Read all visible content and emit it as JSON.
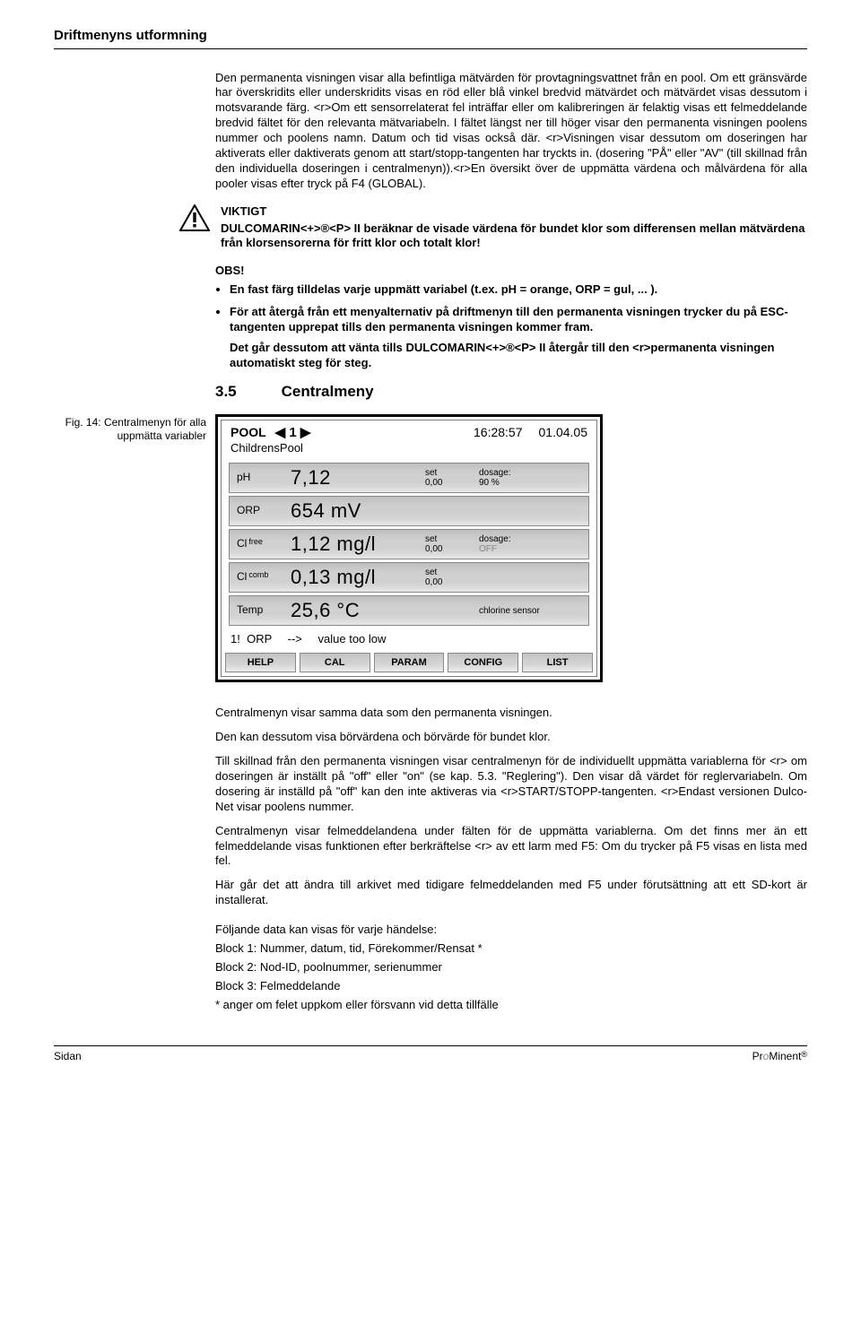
{
  "page": {
    "header": "Driftmenyns utformning",
    "intro_para": "Den permanenta visningen visar alla befintliga mätvärden för provtagningsvattnet från en pool. Om ett gränsvärde har överskridits eller underskridits visas en röd eller blå vinkel bredvid mätvärdet och mätvärdet visas dessutom i motsvarande färg. <r>Om ett sensorrelaterat fel inträffar eller om kalibreringen är felaktig visas ett felmeddelande bredvid fältet för den relevanta mätvariabeln. I fältet längst ner till höger visar den permanenta visningen poolens nummer och poolens namn. Datum och tid visas också där. <r>Visningen visar dessutom om doseringen har aktiverats eller daktiverats genom att start/stopp-tangenten har tryckts in. (dosering \"PÅ\" eller \"AV\" (till skillnad från den individuella doseringen i centralmenyn)).<r>En översikt över de uppmätta värdena och målvärdena för alla pooler visas efter tryck på F4  (GLOBAL).",
    "viktigt": {
      "title": "VIKTIGT",
      "body": "DULCOMARIN<+>®<P> II beräknar de visade värdena för bundet klor som differensen mellan mätvärdena från klorsensorerna för fritt klor och totalt klor!"
    },
    "obs": {
      "title": "OBS!",
      "bullet1": "En fast färg tilldelas varje uppmätt variabel (t.ex. pH = orange, ORP = gul, ... ).",
      "bullet2a": "För att återgå från ett menyalternativ på driftmenyn till den permanenta visningen trycker du på ESC-tangenten upprepat tills den permanenta visningen kommer fram.",
      "bullet2b": "Det går dessutom att vänta tills DULCOMARIN<+>®<P> II återgår till den <r>permanenta visningen automatiskt steg för steg."
    },
    "section": {
      "num": "3.5",
      "title": "Centralmeny"
    },
    "fig_caption": "Fig. 14: Centralmenyn för alla uppmätta variabler",
    "lcd": {
      "pool_label": "POOL",
      "pool_num": "1",
      "time": "16:28:57",
      "date": "01.04.05",
      "subtitle": "ChildrensPool",
      "rows": [
        {
          "label": "pH",
          "sup": "",
          "value": "7,12",
          "set_label": "set",
          "set_val": "0,00",
          "dosage_label": "dosage:",
          "dosage_val": "90 %"
        },
        {
          "label": "ORP",
          "sup": "",
          "value": "654 mV",
          "set_label": "",
          "set_val": "",
          "dosage_label": "",
          "dosage_val": ""
        },
        {
          "label": "Cl",
          "sup": "free",
          "value": "1,12 mg/l",
          "set_label": "set",
          "set_val": "0,00",
          "dosage_label": "dosage:",
          "dosage_val": "OFF"
        },
        {
          "label": "Cl",
          "sup": "comb",
          "value": "0,13 mg/l",
          "set_label": "set",
          "set_val": "0,00",
          "dosage_label": "",
          "dosage_val": ""
        },
        {
          "label": "Temp",
          "sup": "",
          "value": "25,6 °C",
          "set_label": "",
          "set_val": "",
          "dosage_label": "chlorine sensor",
          "dosage_val": ""
        }
      ],
      "status_prefix": "1!",
      "status_var": "ORP",
      "status_arrow": "-->",
      "status_text": "value too low",
      "buttons": [
        "HELP",
        "CAL",
        "PARAM",
        "CONFIG",
        "LIST"
      ]
    },
    "lower": {
      "p1": "Centralmenyn visar samma data som den permanenta visningen.",
      "p2": "Den kan dessutom visa börvärdena och börvärde för bundet klor.",
      "p3": "Till skillnad från den permanenta visningen visar centralmenyn för de individuellt uppmätta variablerna för <r> om doseringen är inställt på \"off\" eller \"on\" (se kap. 5.3. \"Reglering\"). Den visar då värdet för reglervariabeln. Om dosering är inställd på \"off\" kan den inte aktiveras via <r>START/STOPP-tangenten. <r>Endast versionen Dulco-Net visar poolens nummer.",
      "p4": "Centralmenyn visar felmeddelandena under fälten för de uppmätta variablerna. Om det finns mer än ett felmeddelande visas funktionen efter berkräftelse <r> av ett larm med F5: Om du trycker på F5 visas en lista med fel.",
      "p5": "Här går det att ändra till arkivet med tidigare felmeddelanden med F5  under förutsättning att ett SD-kort är installerat.",
      "blocks_intro": "Följande data kan visas för varje händelse:",
      "block1": "Block 1: Nummer, datum, tid, Förekommer/Rensat *",
      "block2": "Block 2: Nod-ID, poolnummer, serienummer",
      "block3": "Block 3: Felmeddelande",
      "footnote": "* anger om felet uppkom eller försvann vid detta tillfälle"
    },
    "footer": {
      "left": "Sidan",
      "brand": "ProMinent"
    }
  },
  "style": {
    "lcd_row_bg": "#d0d0d0",
    "lcd_border": "#000000"
  }
}
